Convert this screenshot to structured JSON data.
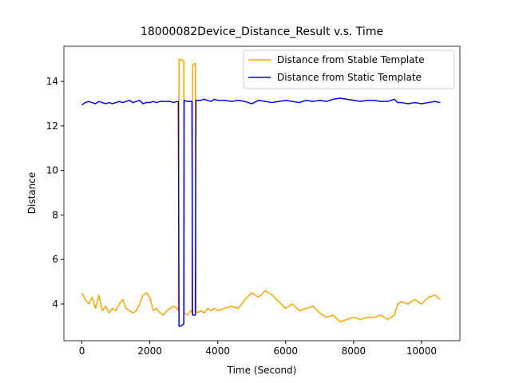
{
  "chart_data": {
    "type": "line",
    "title": "18000082Device_Distance_Result v.s. Time",
    "x_label": "Time (Second)",
    "y_label": "Distance",
    "x": [
      0,
      100,
      200,
      300,
      400,
      500,
      600,
      700,
      800,
      900,
      1000,
      1100,
      1200,
      1300,
      1400,
      1500,
      1600,
      1700,
      1800,
      1900,
      2000,
      2100,
      2200,
      2300,
      2400,
      2500,
      2600,
      2700,
      2800,
      2840,
      2860,
      2900,
      3000,
      3010,
      3100,
      3200,
      3240,
      3260,
      3300,
      3340,
      3360,
      3400,
      3500,
      3600,
      3700,
      3800,
      3900,
      4000,
      4200,
      4400,
      4600,
      4800,
      5000,
      5200,
      5400,
      5600,
      5800,
      6000,
      6200,
      6400,
      6600,
      6800,
      7000,
      7200,
      7400,
      7600,
      7800,
      8000,
      8200,
      8400,
      8600,
      8800,
      9000,
      9200,
      9300,
      9400,
      9600,
      9800,
      10000,
      10200,
      10400,
      10550
    ],
    "series": [
      {
        "name": "Distance from Stable Template",
        "color": "#ffa500",
        "values": [
          4.5,
          4.2,
          4.0,
          4.3,
          3.8,
          4.4,
          3.7,
          3.9,
          3.6,
          3.8,
          3.7,
          4.0,
          4.2,
          3.8,
          3.7,
          3.6,
          3.7,
          4.0,
          4.4,
          4.5,
          4.3,
          3.7,
          3.8,
          3.6,
          3.5,
          3.7,
          3.8,
          3.9,
          3.8,
          3.7,
          15.0,
          15.0,
          14.9,
          3.6,
          3.5,
          3.7,
          3.6,
          14.7,
          14.8,
          14.8,
          3.7,
          3.6,
          3.7,
          3.6,
          3.8,
          3.7,
          3.8,
          3.7,
          3.8,
          3.9,
          3.8,
          4.2,
          4.5,
          4.3,
          4.6,
          4.4,
          4.1,
          3.8,
          4.0,
          3.7,
          3.8,
          3.9,
          3.6,
          3.4,
          3.5,
          3.2,
          3.3,
          3.4,
          3.3,
          3.4,
          3.4,
          3.5,
          3.3,
          3.5,
          4.0,
          4.1,
          4.0,
          4.2,
          4.0,
          4.3,
          4.4,
          4.2
        ]
      },
      {
        "name": "Distance from Static Template",
        "color": "#0000ff",
        "values": [
          12.95,
          13.05,
          13.1,
          13.05,
          13.0,
          13.1,
          13.05,
          13.0,
          13.05,
          13.0,
          13.05,
          13.1,
          13.05,
          13.1,
          13.15,
          13.05,
          13.1,
          13.15,
          13.0,
          13.05,
          13.05,
          13.1,
          13.05,
          13.1,
          13.1,
          13.1,
          13.1,
          13.05,
          13.1,
          13.1,
          3.0,
          3.0,
          3.1,
          13.15,
          13.1,
          13.1,
          13.1,
          3.5,
          3.5,
          3.5,
          13.15,
          13.15,
          13.15,
          13.2,
          13.15,
          13.1,
          13.2,
          13.15,
          13.15,
          13.1,
          13.15,
          13.1,
          13.0,
          13.15,
          13.1,
          13.05,
          13.1,
          13.15,
          13.1,
          13.05,
          13.15,
          13.1,
          13.15,
          13.1,
          13.2,
          13.25,
          13.2,
          13.15,
          13.1,
          13.15,
          13.15,
          13.1,
          13.1,
          13.2,
          13.05,
          13.05,
          13.0,
          13.05,
          13.0,
          13.05,
          13.1,
          13.05
        ]
      }
    ],
    "xlim": [
      -530,
      11130
    ],
    "ylim": [
      2.35,
      15.58
    ],
    "xticks": [
      0,
      2000,
      4000,
      6000,
      8000,
      10000
    ],
    "yticks": [
      4,
      6,
      8,
      10,
      12,
      14
    ],
    "grid": false,
    "legend": "upper right"
  }
}
